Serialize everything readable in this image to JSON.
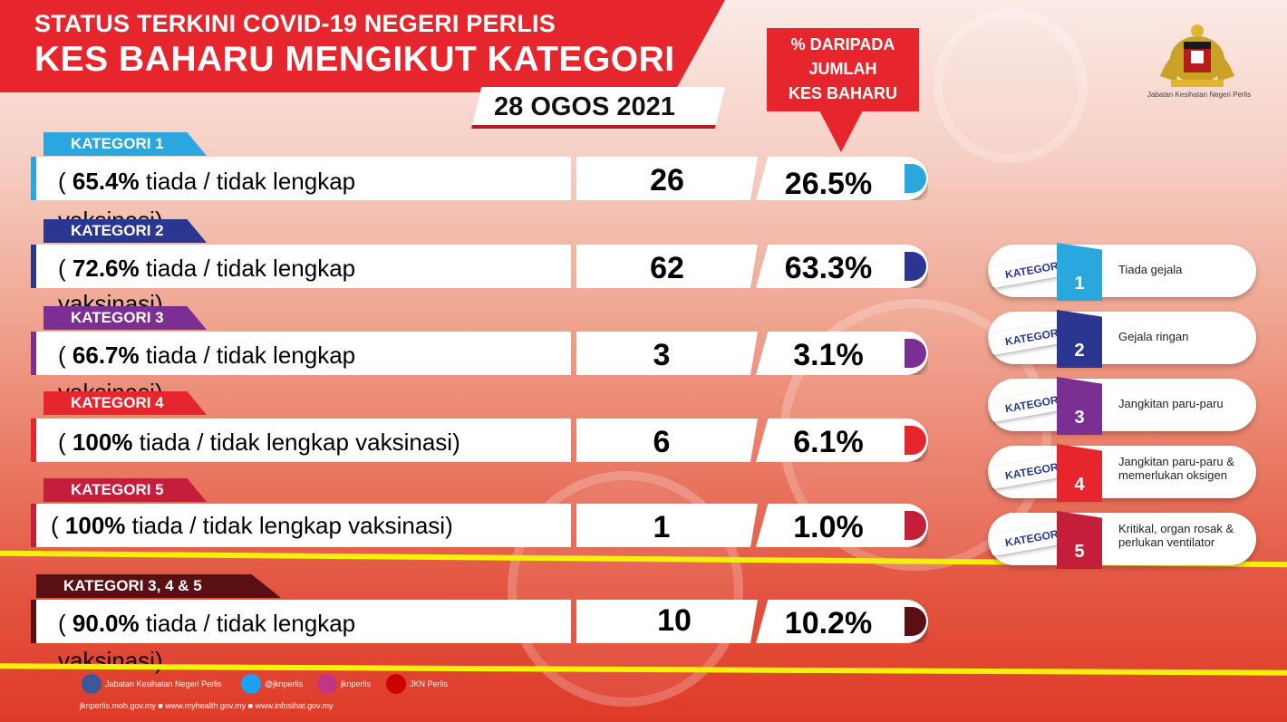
{
  "header": {
    "line1": "STATUS TERKINI COVID-19 NEGERI PERLIS",
    "line2": "KES BAHARU MENGIKUT KATEGORI",
    "date": "28 OGOS 2021",
    "pct_label_1": "% DARIPADA",
    "pct_label_2": "JUMLAH",
    "pct_label_3": "KES BAHARU",
    "logo_caption": "Jabatan Kesihatan Negeri Perlis"
  },
  "rows": [
    {
      "tag": "KATEGORI 1",
      "pct_vax": "65.4%",
      "desc_mid": " tiada / tidak lengkap",
      "desc_wrap": "vaksinasi",
      "open": "(",
      "close": ")",
      "count": "26",
      "share": "26.5%",
      "color": "#2aa7df"
    },
    {
      "tag": "KATEGORI 2",
      "pct_vax": "72.6%",
      "desc_mid": " tiada / tidak lengkap",
      "desc_wrap": "vaksinasi",
      "open": "(",
      "close": ")",
      "count": "62",
      "share": "63.3%",
      "color": "#2b3690"
    },
    {
      "tag": "KATEGORI 3",
      "pct_vax": "66.7%",
      "desc_mid": " tiada / tidak lengkap",
      "desc_wrap": "vaksinasi",
      "open": "(",
      "close": ")",
      "count": "3",
      "share": "3.1%",
      "color": "#7b2f92"
    },
    {
      "tag": "KATEGORI 4",
      "pct_vax": "100%",
      "desc_mid": " tiada / tidak lengkap vaksinasi",
      "desc_wrap": "",
      "open": "(",
      "close": ")",
      "count": "6",
      "share": "6.1%",
      "color": "#e6262c"
    },
    {
      "tag": "KATEGORI 5",
      "pct_vax": "100%",
      "desc_mid": " tiada / tidak lengkap vaksinasi",
      "desc_wrap": "",
      "open": "(",
      "close": ")",
      "count": "1",
      "share": "1.0%",
      "color": "#c41e3a"
    },
    {
      "tag": "KATEGORI 3, 4 & 5",
      "pct_vax": "90.0%",
      "desc_mid": " tiada / tidak lengkap",
      "desc_wrap": "vaksinasi",
      "open": "(",
      "close": ")",
      "count": "10",
      "share": "10.2%",
      "color": "#5a0f14"
    }
  ],
  "legend": [
    {
      "tag": "KATEGORI",
      "num": "1",
      "text": "Tiada gejala",
      "color": "#2aa7df"
    },
    {
      "tag": "KATEGORI",
      "num": "2",
      "text": "Gejala ringan",
      "color": "#2b3690"
    },
    {
      "tag": "KATEGORI",
      "num": "3",
      "text": "Jangkitan paru-paru",
      "color": "#7b2f92"
    },
    {
      "tag": "KATEGORI",
      "num": "4",
      "text": "Jangkitan paru-paru & memerlukan oksigen",
      "color": "#e6262c"
    },
    {
      "tag": "KATEGORI",
      "num": "5",
      "text": "Kritikal, organ rosak & perlukan ventilator",
      "color": "#c41e3a"
    }
  ],
  "footer": {
    "facebook": "Jabatan Kesihatan Negeri Perlis",
    "twitter": "@jknperlis",
    "instagram": "jknperlis",
    "youtube": "JKN Perlis",
    "links": "jknperlis.moh.gov.my ■ www.myhealth.gov.my ■ www.infosihat.gov.my"
  }
}
